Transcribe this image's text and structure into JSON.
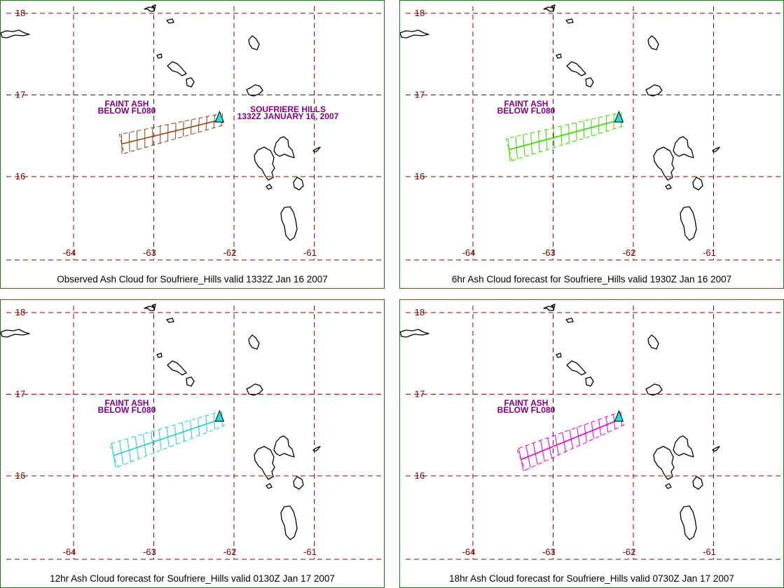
{
  "panels": [
    {
      "caption": "Observed Ash Cloud for Soufriere_Hills valid 1332Z Jan 16 2007",
      "plume_color": "#8b4513",
      "plume_width_deg": 0.12,
      "label_lines": [
        "FAINT ASH",
        "BELOW FL080"
      ],
      "volcano_label_lines": [
        "SOUFRIERE HILLS",
        "1332Z JANUARY 16, 2007"
      ],
      "plume": {
        "start": [
          -63.4,
          16.4
        ],
        "end": [
          -62.15,
          16.7
        ]
      }
    },
    {
      "caption": "6hr Ash Cloud forecast for Soufriere_Hills valid 1930Z Jan 16 2007",
      "plume_color": "#33dd00",
      "plume_width_deg": 0.14,
      "label_lines": [
        "FAINT ASH",
        "BELOW FL080"
      ],
      "volcano_label_lines": [],
      "plume": {
        "start": [
          -63.55,
          16.33
        ],
        "end": [
          -62.15,
          16.7
        ]
      }
    },
    {
      "caption": "12hr Ash Cloud forecast for Soufriere_Hills valid 0130Z Jan 17 2007",
      "plume_color": "#22cccc",
      "plume_width_deg": 0.15,
      "label_lines": [
        "FAINT ASH",
        "BELOW FL080"
      ],
      "volcano_label_lines": [],
      "plume": {
        "start": [
          -63.5,
          16.25
        ],
        "end": [
          -62.15,
          16.7
        ]
      }
    },
    {
      "caption": "18hr Ash Cloud forecast for Soufriere_Hills valid 0730Z Jan 17 2007",
      "plume_color": "#dd00dd",
      "plume_width_deg": 0.14,
      "label_lines": [
        "FAINT ASH",
        "BELOW FL080"
      ],
      "volcano_label_lines": [],
      "plume": {
        "start": [
          -63.4,
          16.2
        ],
        "end": [
          -62.15,
          16.7
        ]
      }
    }
  ],
  "map": {
    "lon_ticks": [
      "-64",
      "-63",
      "-62",
      "-61"
    ],
    "lat_ticks": [
      "18",
      "17",
      "16"
    ],
    "lon_values": [
      -64,
      -63,
      -62,
      -61
    ],
    "lat_values": [
      18,
      17,
      16
    ],
    "grid_color": "#8b0000",
    "volcano_color": "#22dddd",
    "volcano": [
      -62.18,
      16.72
    ]
  }
}
